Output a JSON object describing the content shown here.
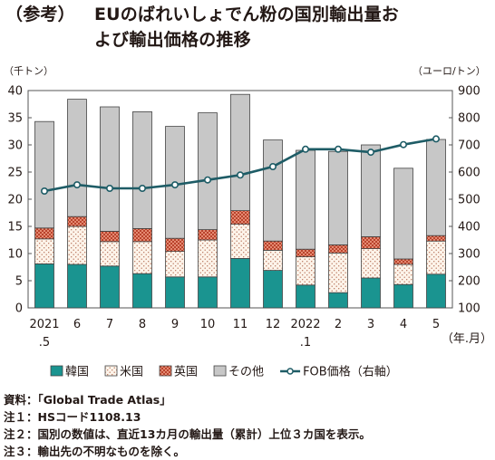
{
  "title": {
    "tag": "（参考）",
    "line1": "EUのばれいしょでん粉の国別輸出量お",
    "line2": "よび輸出価格の推移"
  },
  "chart_data": {
    "type": "bar",
    "stacked": true,
    "categories": [
      "2021\n.5",
      "6",
      "7",
      "8",
      "9",
      "10",
      "11",
      "12",
      "2022\n.1",
      "2",
      "3",
      "4",
      "5"
    ],
    "x_unit_label": "（年.月）",
    "y_left": {
      "label": "（千トン）",
      "ylim": [
        0,
        40
      ],
      "ticks": [
        0,
        5,
        10,
        15,
        20,
        25,
        30,
        35,
        40
      ]
    },
    "y_right": {
      "label": "（ユーロ/トン）",
      "ylim": [
        100,
        900
      ],
      "ticks": [
        100,
        200,
        300,
        400,
        500,
        600,
        700,
        800,
        900
      ]
    },
    "grid": false,
    "legend_position": "bottom",
    "series": [
      {
        "name": "韓国",
        "kind": "bar",
        "color": "#1a9490",
        "values": [
          8.1,
          8.0,
          7.7,
          6.3,
          5.7,
          5.7,
          9.1,
          6.9,
          4.2,
          2.8,
          5.5,
          4.3,
          6.2
        ]
      },
      {
        "name": "米国",
        "kind": "bar",
        "color": "#fdf4ea",
        "pattern": "dots",
        "values": [
          4.6,
          7.0,
          4.5,
          5.9,
          4.7,
          6.8,
          6.3,
          3.7,
          5.2,
          7.3,
          5.4,
          3.7,
          6.1
        ]
      },
      {
        "name": "英国",
        "kind": "bar",
        "color": "#d86a52",
        "pattern": "checker",
        "values": [
          2.0,
          1.8,
          1.9,
          2.4,
          2.4,
          1.9,
          2.5,
          1.7,
          1.4,
          1.5,
          2.2,
          1.0,
          1.0
        ]
      },
      {
        "name": "その他",
        "kind": "bar",
        "color": "#c7c7c7",
        "values": [
          19.6,
          21.6,
          22.9,
          21.5,
          20.6,
          21.5,
          21.4,
          18.6,
          18.2,
          17.2,
          16.9,
          16.7,
          17.7
        ]
      },
      {
        "name": "FOB価格（右軸）",
        "kind": "line",
        "axis": "right",
        "color": "#1e5c66",
        "values": [
          530,
          553,
          540,
          540,
          553,
          571,
          589,
          620,
          684,
          684,
          673,
          701,
          722
        ]
      }
    ]
  },
  "notes": [
    "資料：「Global Trade Atlas」",
    "注１：HSコード1108.13",
    "注２：国別の数値は、直近13カ月の輸出量（累計）上位３カ国を表示。",
    "注３：輸出先の不明なものを除く。"
  ]
}
